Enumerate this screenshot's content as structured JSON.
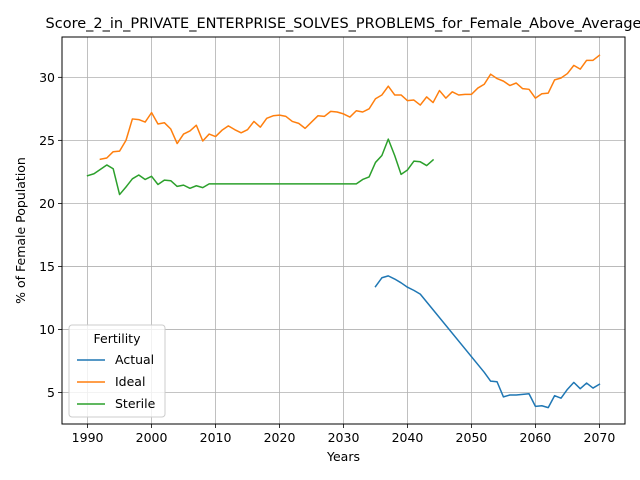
{
  "chart_data": {
    "type": "line",
    "title": "Score_2_in_PRIVATE_ENTERPRISE_SOLVES_PROBLEMS_for_Female_Above_Average",
    "xlabel": "Years",
    "ylabel": "% of Female Population",
    "xlim": [
      1986,
      2074
    ],
    "ylim": [
      2.5,
      33.2
    ],
    "x_ticks": [
      1990,
      2000,
      2010,
      2020,
      2030,
      2040,
      2050,
      2060,
      2070
    ],
    "y_ticks": [
      5,
      10,
      15,
      20,
      25,
      30
    ],
    "grid": true,
    "legend": {
      "title": "Fertility",
      "placement": "lower-left"
    },
    "series": [
      {
        "name": "Actual",
        "color": "#1f77b4",
        "points": [
          [
            2035,
            13.4
          ],
          [
            2036,
            14.1
          ],
          [
            2037,
            14.25
          ],
          [
            2038,
            14.0
          ],
          [
            2039,
            13.7
          ],
          [
            2040,
            13.35
          ],
          [
            2041,
            13.1
          ],
          [
            2042,
            12.8
          ],
          [
            2052,
            6.6
          ],
          [
            2053,
            5.9
          ],
          [
            2054,
            5.85
          ],
          [
            2055,
            4.65
          ],
          [
            2056,
            4.8
          ],
          [
            2057,
            4.8
          ],
          [
            2058,
            4.85
          ],
          [
            2059,
            4.9
          ],
          [
            2060,
            3.9
          ],
          [
            2061,
            3.95
          ],
          [
            2062,
            3.8
          ],
          [
            2063,
            4.75
          ],
          [
            2064,
            4.55
          ],
          [
            2065,
            5.25
          ],
          [
            2066,
            5.8
          ],
          [
            2067,
            5.3
          ],
          [
            2068,
            5.75
          ],
          [
            2069,
            5.35
          ],
          [
            2070,
            5.65
          ]
        ]
      },
      {
        "name": "Ideal",
        "color": "#ff7f0e",
        "points": [
          [
            1992,
            23.5
          ],
          [
            1993,
            23.6
          ],
          [
            1994,
            24.1
          ],
          [
            1995,
            24.15
          ],
          [
            1996,
            25.0
          ],
          [
            1997,
            26.7
          ],
          [
            1998,
            26.65
          ],
          [
            1999,
            26.45
          ],
          [
            2000,
            27.2
          ],
          [
            2001,
            26.3
          ],
          [
            2002,
            26.4
          ],
          [
            2003,
            25.9
          ],
          [
            2004,
            24.75
          ],
          [
            2005,
            25.5
          ],
          [
            2006,
            25.75
          ],
          [
            2007,
            26.2
          ],
          [
            2008,
            24.95
          ],
          [
            2009,
            25.5
          ],
          [
            2010,
            25.3
          ],
          [
            2011,
            25.8
          ],
          [
            2012,
            26.15
          ],
          [
            2013,
            25.85
          ],
          [
            2014,
            25.6
          ],
          [
            2015,
            25.85
          ],
          [
            2016,
            26.5
          ],
          [
            2017,
            26.05
          ],
          [
            2018,
            26.75
          ],
          [
            2019,
            26.95
          ],
          [
            2020,
            27.0
          ],
          [
            2021,
            26.9
          ],
          [
            2022,
            26.5
          ],
          [
            2023,
            26.35
          ],
          [
            2024,
            25.95
          ],
          [
            2025,
            26.45
          ],
          [
            2026,
            26.95
          ],
          [
            2027,
            26.9
          ],
          [
            2028,
            27.3
          ],
          [
            2029,
            27.25
          ],
          [
            2030,
            27.1
          ],
          [
            2031,
            26.85
          ],
          [
            2032,
            27.35
          ],
          [
            2033,
            27.25
          ],
          [
            2034,
            27.5
          ],
          [
            2035,
            28.3
          ],
          [
            2036,
            28.6
          ],
          [
            2037,
            29.3
          ],
          [
            2038,
            28.6
          ],
          [
            2039,
            28.6
          ],
          [
            2040,
            28.15
          ],
          [
            2041,
            28.2
          ],
          [
            2042,
            27.8
          ],
          [
            2043,
            28.45
          ],
          [
            2044,
            28.0
          ],
          [
            2045,
            28.95
          ],
          [
            2046,
            28.35
          ],
          [
            2047,
            28.85
          ],
          [
            2048,
            28.6
          ],
          [
            2049,
            28.65
          ],
          [
            2050,
            28.65
          ],
          [
            2051,
            29.15
          ],
          [
            2052,
            29.45
          ],
          [
            2053,
            30.25
          ],
          [
            2054,
            29.9
          ],
          [
            2055,
            29.7
          ],
          [
            2056,
            29.35
          ],
          [
            2057,
            29.55
          ],
          [
            2058,
            29.1
          ],
          [
            2059,
            29.05
          ],
          [
            2060,
            28.35
          ],
          [
            2061,
            28.7
          ],
          [
            2062,
            28.75
          ],
          [
            2063,
            29.8
          ],
          [
            2064,
            29.95
          ],
          [
            2065,
            30.3
          ],
          [
            2066,
            30.95
          ],
          [
            2067,
            30.65
          ],
          [
            2068,
            31.35
          ],
          [
            2069,
            31.35
          ],
          [
            2070,
            31.75
          ]
        ]
      },
      {
        "name": "Sterile",
        "color": "#2ca02c",
        "points": [
          [
            1990,
            22.2
          ],
          [
            1991,
            22.35
          ],
          [
            1992,
            22.7
          ],
          [
            1993,
            23.05
          ],
          [
            1994,
            22.75
          ],
          [
            1995,
            20.7
          ],
          [
            1996,
            21.3
          ],
          [
            1997,
            21.95
          ],
          [
            1998,
            22.25
          ],
          [
            1999,
            21.9
          ],
          [
            2000,
            22.15
          ],
          [
            2001,
            21.5
          ],
          [
            2002,
            21.85
          ],
          [
            2003,
            21.8
          ],
          [
            2004,
            21.35
          ],
          [
            2005,
            21.45
          ],
          [
            2006,
            21.2
          ],
          [
            2007,
            21.4
          ],
          [
            2008,
            21.25
          ],
          [
            2009,
            21.55
          ],
          [
            2032,
            21.55
          ],
          [
            2033,
            21.9
          ],
          [
            2034,
            22.1
          ],
          [
            2035,
            23.25
          ],
          [
            2036,
            23.8
          ],
          [
            2037,
            25.1
          ],
          [
            2038,
            23.8
          ],
          [
            2039,
            22.3
          ],
          [
            2040,
            22.65
          ],
          [
            2041,
            23.35
          ],
          [
            2042,
            23.3
          ],
          [
            2043,
            23.0
          ],
          [
            2044,
            23.45
          ]
        ]
      }
    ]
  }
}
